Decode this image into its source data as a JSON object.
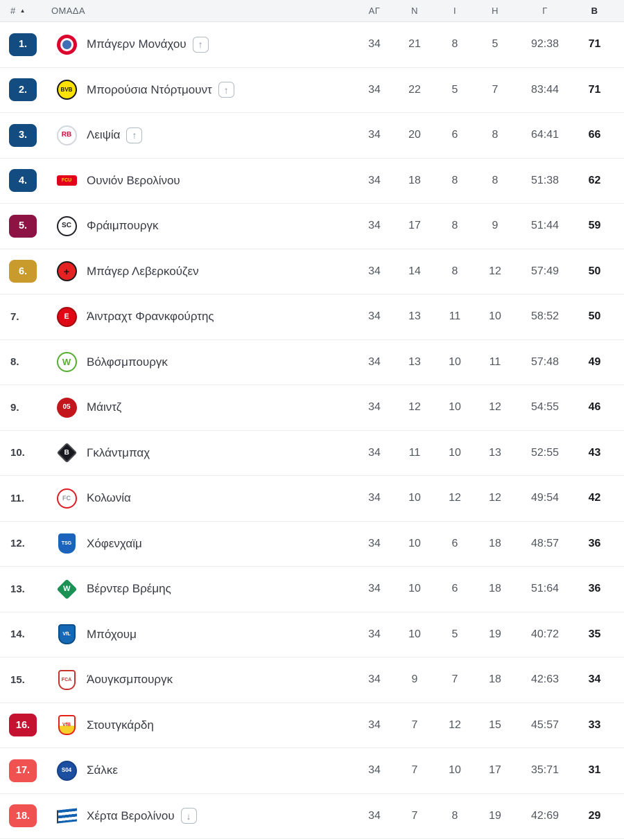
{
  "table": {
    "header": {
      "rank": "#",
      "sort_icon": "▲",
      "team": "ΟΜΑΔΑ",
      "played": "ΑΓ",
      "wins": "Ν",
      "draws": "Ι",
      "losses": "Η",
      "goals": "Γ",
      "points": "Β"
    },
    "rows": [
      {
        "pos": "1.",
        "badge": "blue",
        "team": "Μπάγερν Μονάχου",
        "movement": "up",
        "played": "34",
        "wins": "21",
        "draws": "8",
        "losses": "5",
        "goals": "92:38",
        "points": "71",
        "logo": {
          "name": "bayern-munich-logo",
          "shape": "circle",
          "bg": "#DC052D",
          "inner": "#3F6FB5"
        }
      },
      {
        "pos": "2.",
        "badge": "blue",
        "team": "Μπορούσια Ντόρτμουντ",
        "movement": "up",
        "played": "34",
        "wins": "22",
        "draws": "5",
        "losses": "7",
        "goals": "83:44",
        "points": "71",
        "logo": {
          "name": "borussia-dortmund-logo",
          "shape": "circle",
          "bg": "#FDE100",
          "border": "#15151A",
          "text": "BVB",
          "tc": "#15151A",
          "fs": 8
        }
      },
      {
        "pos": "3.",
        "badge": "blue",
        "team": "Λειψία",
        "movement": "up",
        "played": "34",
        "wins": "20",
        "draws": "6",
        "losses": "8",
        "goals": "64:41",
        "points": "66",
        "logo": {
          "name": "rb-leipzig-logo",
          "shape": "circle",
          "bg": "#FFFFFF",
          "border": "#D3D6DB",
          "text": "RB",
          "tc": "#DD0741",
          "fs": 10
        }
      },
      {
        "pos": "4.",
        "badge": "blue",
        "team": "Ουνιόν Βερολίνου",
        "movement": "none",
        "played": "34",
        "wins": "18",
        "draws": "8",
        "losses": "8",
        "goals": "51:38",
        "points": "62",
        "logo": {
          "name": "union-berlin-logo",
          "shape": "tag",
          "bg": "#E2001A",
          "text": "FCU",
          "tc": "#FFD500",
          "fs": 7
        }
      },
      {
        "pos": "5.",
        "badge": "maroon",
        "team": "Φράιμπουργκ",
        "movement": "none",
        "played": "34",
        "wins": "17",
        "draws": "8",
        "losses": "9",
        "goals": "51:44",
        "points": "59",
        "logo": {
          "name": "freiburg-logo",
          "shape": "circle",
          "bg": "#FFFFFF",
          "border": "#202228",
          "text": "SC",
          "tc": "#202228",
          "fs": 10
        }
      },
      {
        "pos": "6.",
        "badge": "gold",
        "team": "Μπάγερ Λεβερκούζεν",
        "movement": "none",
        "played": "34",
        "wins": "14",
        "draws": "8",
        "losses": "12",
        "goals": "57:49",
        "points": "50",
        "logo": {
          "name": "bayer-leverkusen-logo",
          "shape": "circle",
          "bg": "#E32221",
          "border": "#1A1A1A",
          "text": "+",
          "tc": "#141414",
          "fs": 14
        }
      },
      {
        "pos": "7.",
        "badge": "none",
        "team": "Άιντραχτ Φρανκφούρτης",
        "movement": "none",
        "played": "34",
        "wins": "13",
        "draws": "11",
        "losses": "10",
        "goals": "58:52",
        "points": "50",
        "logo": {
          "name": "eintracht-frankfurt-logo",
          "shape": "circle",
          "bg": "#DF0814",
          "border": "#A50910",
          "text": "E",
          "tc": "#FFFFFF",
          "fs": 11
        }
      },
      {
        "pos": "8.",
        "badge": "none",
        "team": "Βόλφσμπουργκ",
        "movement": "none",
        "played": "34",
        "wins": "13",
        "draws": "10",
        "losses": "11",
        "goals": "57:48",
        "points": "49",
        "logo": {
          "name": "wolfsburg-logo",
          "shape": "circle",
          "bg": "#FFFFFF",
          "border": "#57AE31",
          "text": "W",
          "tc": "#57AE31",
          "fs": 13
        }
      },
      {
        "pos": "9.",
        "badge": "none",
        "team": "Μάιντζ",
        "movement": "none",
        "played": "34",
        "wins": "12",
        "draws": "10",
        "losses": "12",
        "goals": "54:55",
        "points": "46",
        "logo": {
          "name": "mainz-logo",
          "shape": "circle",
          "bg": "#C3161C",
          "text": "05",
          "tc": "#FFFFFF",
          "fs": 10
        }
      },
      {
        "pos": "10.",
        "badge": "none",
        "team": "Γκλάντμπαχ",
        "movement": "none",
        "played": "34",
        "wins": "11",
        "draws": "10",
        "losses": "13",
        "goals": "52:55",
        "points": "43",
        "logo": {
          "name": "gladbach-logo",
          "shape": "diamond",
          "bg": "#17181D",
          "border": "#4A4C52",
          "text": "B",
          "tc": "#FFFFFF",
          "fs": 10
        }
      },
      {
        "pos": "11.",
        "badge": "none",
        "team": "Κολωνία",
        "movement": "none",
        "played": "34",
        "wins": "10",
        "draws": "12",
        "losses": "12",
        "goals": "49:54",
        "points": "42",
        "logo": {
          "name": "koln-logo",
          "shape": "circle",
          "bg": "#FFFFFF",
          "border": "#DF1C24",
          "text": "FC",
          "tc": "#8D939D",
          "fs": 9
        }
      },
      {
        "pos": "12.",
        "badge": "none",
        "team": "Χόφενχαϊμ",
        "movement": "none",
        "played": "34",
        "wins": "10",
        "draws": "6",
        "losses": "18",
        "goals": "48:57",
        "points": "36",
        "logo": {
          "name": "hoffenheim-logo",
          "shape": "shield",
          "bg": "#1B63BB",
          "text": "TSG",
          "tc": "#FFFFFF",
          "fs": 7
        }
      },
      {
        "pos": "13.",
        "badge": "none",
        "team": "Βέρντερ Βρέμης",
        "movement": "none",
        "played": "34",
        "wins": "10",
        "draws": "6",
        "losses": "18",
        "goals": "51:64",
        "points": "36",
        "logo": {
          "name": "werder-bremen-logo",
          "shape": "diamond",
          "bg": "#1C9154",
          "text": "W",
          "tc": "#FFFFFF",
          "fs": 11
        }
      },
      {
        "pos": "14.",
        "badge": "none",
        "team": "Μπόχουμ",
        "movement": "none",
        "played": "34",
        "wins": "10",
        "draws": "5",
        "losses": "19",
        "goals": "40:72",
        "points": "35",
        "logo": {
          "name": "bochum-logo",
          "shape": "shield",
          "bg": "#1568B4",
          "border": "#0D4C86",
          "text": "VfL",
          "tc": "#FFFFFF",
          "fs": 7
        }
      },
      {
        "pos": "15.",
        "badge": "none",
        "team": "Άουγκσμπουργκ",
        "movement": "none",
        "played": "34",
        "wins": "9",
        "draws": "7",
        "losses": "18",
        "goals": "42:63",
        "points": "34",
        "logo": {
          "name": "augsburg-logo",
          "shape": "shield",
          "bg": "#FFFFFF",
          "border": "#C53430",
          "text": "FCA",
          "tc": "#C53430",
          "fs": 7
        }
      },
      {
        "pos": "16.",
        "badge": "darkred",
        "team": "Στουτγκάρδη",
        "movement": "none",
        "played": "34",
        "wins": "7",
        "draws": "12",
        "losses": "15",
        "goals": "45:57",
        "points": "33",
        "logo": {
          "name": "stuttgart-logo",
          "shape": "shield",
          "bg": "#FFFFFF",
          "bg2": "#F5D02B",
          "border": "#E32219",
          "text": "VfB",
          "tc": "#E32219",
          "fs": 7
        }
      },
      {
        "pos": "17.",
        "badge": "red",
        "team": "Σάλκε",
        "movement": "none",
        "played": "34",
        "wins": "7",
        "draws": "10",
        "losses": "17",
        "goals": "35:71",
        "points": "31",
        "logo": {
          "name": "schalke-logo",
          "shape": "circle",
          "bg": "#1D4FA1",
          "border": "#16408A",
          "text": "S04",
          "tc": "#FFFFFF",
          "fs": 8
        }
      },
      {
        "pos": "18.",
        "badge": "red",
        "team": "Χέρτα Βερολίνου",
        "movement": "down",
        "played": "34",
        "wins": "7",
        "draws": "8",
        "losses": "19",
        "goals": "42:69",
        "points": "29",
        "logo": {
          "name": "hertha-berlin-logo",
          "shape": "flag",
          "bg": "#1261B0"
        }
      }
    ]
  },
  "colors": {
    "badge_blue": "#134C81",
    "badge_maroon": "#8E1345",
    "badge_gold": "#C99A2C",
    "badge_darkred": "#C51230",
    "badge_red": "#F05151",
    "header_bg": "#F4F5F7",
    "row_border": "#EBEDEF",
    "team_text": "#383B44",
    "points_text": "#17191E"
  },
  "icons": {
    "up_arrow": "↑",
    "down_arrow": "↓"
  }
}
